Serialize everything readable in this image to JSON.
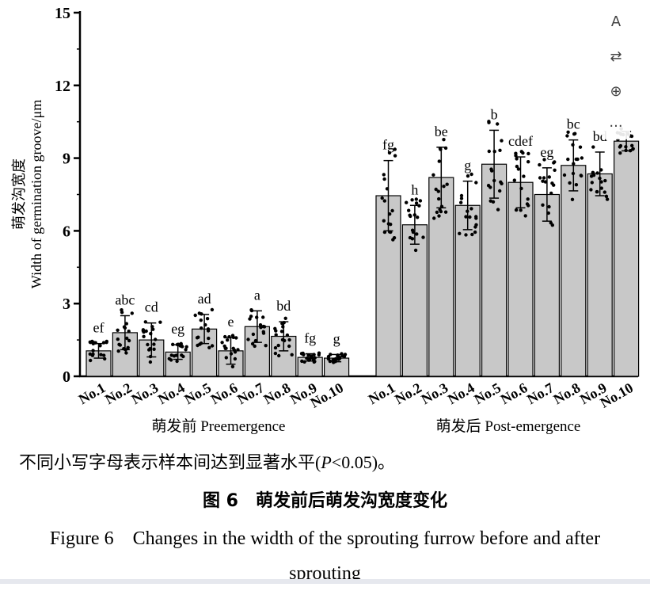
{
  "chart_data": {
    "type": "bar",
    "ylabel": "萌发沟宽度\nWidth of germination groove/μm",
    "ylim": [
      0,
      15
    ],
    "yticks": [
      "0",
      "3",
      "6",
      "9",
      "12",
      "15"
    ],
    "groups": [
      {
        "label": "萌发前 Preemergence",
        "categories": [
          "No.1",
          "No.2",
          "No.3",
          "No.4",
          "No.5",
          "No.6",
          "No.7",
          "No.8",
          "No.9",
          "No.10"
        ],
        "values": [
          1.05,
          1.8,
          1.5,
          1.0,
          1.95,
          1.05,
          2.05,
          1.65,
          0.78,
          0.75
        ],
        "errors": [
          0.3,
          0.7,
          0.7,
          0.3,
          0.6,
          0.55,
          0.65,
          0.6,
          0.15,
          0.15
        ],
        "significance": [
          "ef",
          "abc",
          "cd",
          "eg",
          "ad",
          "e",
          "a",
          "bd",
          "fg",
          "g"
        ]
      },
      {
        "label": "萌发后 Post-emergence",
        "categories": [
          "No.1",
          "No.2",
          "No.3",
          "No.4",
          "No.5",
          "No.6",
          "No.7",
          "No.8",
          "No.9",
          "No.10"
        ],
        "values": [
          7.45,
          6.25,
          8.2,
          7.05,
          8.75,
          8.0,
          7.5,
          8.7,
          8.35,
          9.7
        ],
        "errors": [
          1.45,
          0.8,
          1.25,
          1.0,
          1.4,
          1.05,
          1.1,
          1.05,
          0.9,
          0.4
        ],
        "significance": [
          "fg",
          "h",
          "be",
          "g",
          "b",
          "cdef",
          "eg",
          "bc",
          "bd",
          ""
        ]
      }
    ],
    "grid": false,
    "legend": "none"
  },
  "caption": {
    "note_before": "不同小写字母表示样本间达到显著水平(",
    "note_p": "P",
    "note_after": "<0.05)。",
    "figure_cn": "图 6　萌发前后萌发沟宽度变化",
    "figure_en": "Figure 6　Changes in the width of the sprouting furrow before and after sprouting"
  },
  "toolbar": {
    "items": [
      {
        "name": "text-style",
        "glyph": "A"
      },
      {
        "name": "translate",
        "glyph": "⇄"
      },
      {
        "name": "zoom-in",
        "glyph": "⊕"
      },
      {
        "name": "more",
        "glyph": "···"
      }
    ]
  }
}
